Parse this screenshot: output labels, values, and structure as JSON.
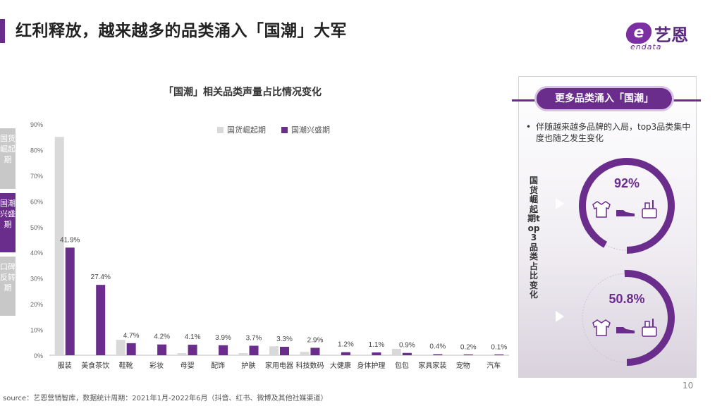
{
  "title": "红利释放，越来越多的品类涌入「国潮」大军",
  "logo": {
    "badge": "e",
    "cn": "艺恩",
    "en": "endata"
  },
  "side_tabs": [
    "国货崛起期",
    "国潮兴盛期",
    "口碑反转期"
  ],
  "colors": {
    "accent": "#6b2d8c",
    "grey": "#d9d9d9",
    "light_purple": "#d7c4e2"
  },
  "chart_data": {
    "type": "bar",
    "title": "「国潮」相关品类声量占比情况变化",
    "categories": [
      "服装",
      "美食茶饮",
      "鞋靴",
      "彩妆",
      "母婴",
      "配饰",
      "护肤",
      "家用电器",
      "科技数码",
      "大健康",
      "身体护理",
      "包包",
      "家具家装",
      "宠物",
      "汽车"
    ],
    "series": [
      {
        "name": "国货崛起期",
        "color": "#d9d9d9",
        "values": [
          85,
          0,
          6,
          0,
          0.8,
          0,
          0.8,
          3.5,
          1.3,
          0,
          0,
          2.5,
          0,
          0,
          0
        ]
      },
      {
        "name": "国潮兴盛期",
        "color": "#6b2d8c",
        "values": [
          41.9,
          27.4,
          4.7,
          4.2,
          4.1,
          3.9,
          3.7,
          3.3,
          2.9,
          1.2,
          1.1,
          0.9,
          0.4,
          0.2,
          0.1
        ]
      }
    ],
    "data_labels": [
      "41.9%",
      "27.4%",
      "4.7%",
      "4.2%",
      "4.1%",
      "3.9%",
      "3.7%",
      "3.3%",
      "2.9%",
      "1.2%",
      "1.1%",
      "0.9%",
      "0.4%",
      "0.2%",
      "0.1%"
    ],
    "y_ticks": [
      "0%",
      "10%",
      "20%",
      "30%",
      "40%",
      "50%",
      "60%",
      "70%",
      "80%",
      "90%"
    ],
    "ylim": [
      0,
      90
    ],
    "grid": false,
    "legend_position": "top"
  },
  "panel": {
    "header": "更多品类涌入「国潮」",
    "bullet": "•",
    "note": "伴随越来越多品牌的入局，top3品类集中度也随之发生变化",
    "vertical_label": "国货崛起期top3品类占比变化",
    "donuts": [
      {
        "label": "92%",
        "value": 0.92,
        "icons": [
          "shirt-icon",
          "shoe-icon",
          "cosmetics-icon"
        ]
      },
      {
        "label": "50.8%",
        "value": 0.508,
        "icons": [
          "shirt-icon",
          "shoe-icon",
          "cosmetics-icon"
        ]
      }
    ]
  },
  "source": "source：艺恩营销智库，数据统计周期：2021年1月-2022年6月（抖音、红书、微博及其他社媒渠道）",
  "page_number": "10"
}
